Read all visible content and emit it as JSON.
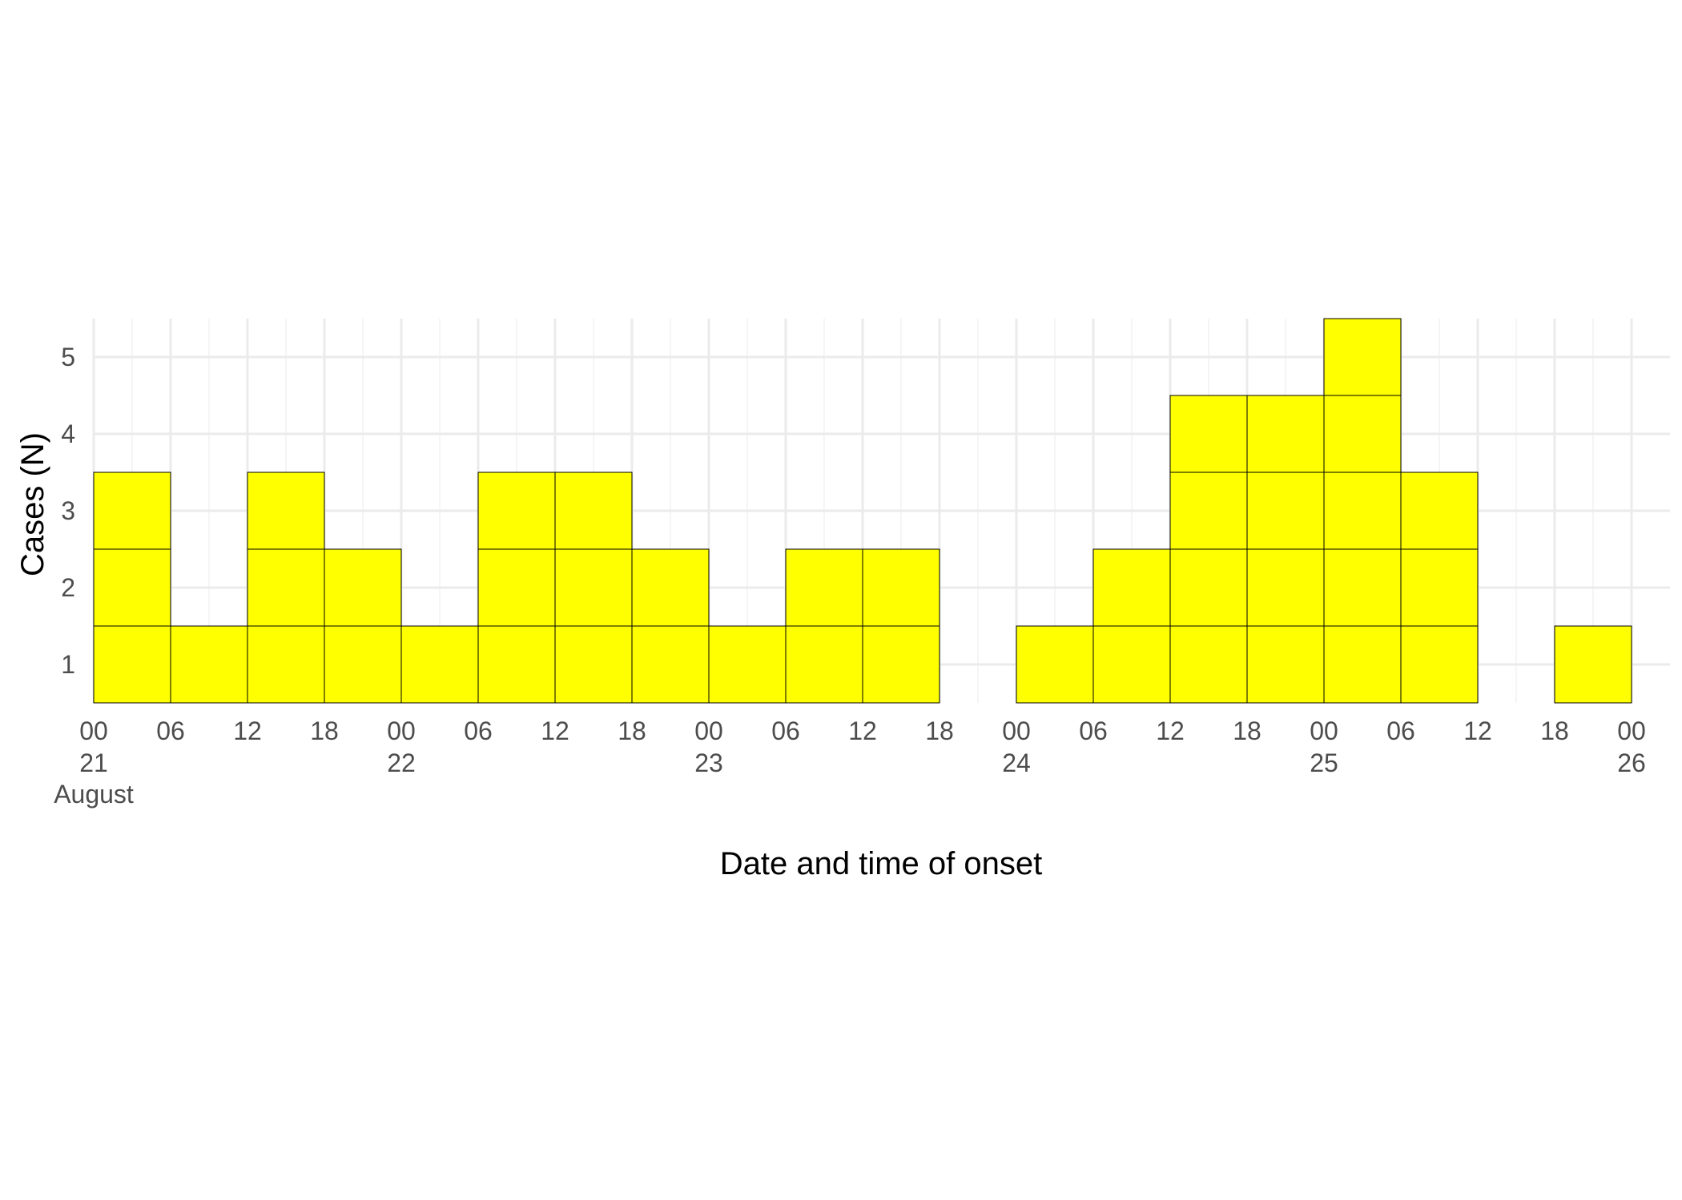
{
  "chart_data": {
    "type": "bar",
    "title": "",
    "xlabel": "Date and time of onset",
    "ylabel": "Cases (N)",
    "bin_hours": 6,
    "x_start": "2021-08-21T00:00",
    "x_end": "2021-08-26T06:00",
    "x": [
      "2021-08-21T00:00",
      "2021-08-21T06:00",
      "2021-08-21T12:00",
      "2021-08-21T18:00",
      "2021-08-22T00:00",
      "2021-08-22T06:00",
      "2021-08-22T12:00",
      "2021-08-22T18:00",
      "2021-08-23T00:00",
      "2021-08-23T06:00",
      "2021-08-23T12:00",
      "2021-08-23T18:00",
      "2021-08-24T00:00",
      "2021-08-24T06:00",
      "2021-08-24T12:00",
      "2021-08-24T18:00",
      "2021-08-25T00:00",
      "2021-08-25T06:00",
      "2021-08-25T12:00",
      "2021-08-25T18:00"
    ],
    "values": [
      3,
      1,
      3,
      2,
      1,
      3,
      3,
      2,
      1,
      2,
      2,
      0,
      1,
      2,
      4,
      4,
      5,
      3,
      0,
      1
    ],
    "ylim": [
      0.5,
      5.5
    ],
    "y_ticks": [
      1,
      2,
      3,
      4,
      5
    ],
    "x_ticks": [
      {
        "hour": "00",
        "day": "21",
        "month": "August"
      },
      {
        "hour": "06",
        "day": "",
        "month": ""
      },
      {
        "hour": "12",
        "day": "",
        "month": ""
      },
      {
        "hour": "18",
        "day": "",
        "month": ""
      },
      {
        "hour": "00",
        "day": "22",
        "month": ""
      },
      {
        "hour": "06",
        "day": "",
        "month": ""
      },
      {
        "hour": "12",
        "day": "",
        "month": ""
      },
      {
        "hour": "18",
        "day": "",
        "month": ""
      },
      {
        "hour": "00",
        "day": "23",
        "month": ""
      },
      {
        "hour": "06",
        "day": "",
        "month": ""
      },
      {
        "hour": "12",
        "day": "",
        "month": ""
      },
      {
        "hour": "18",
        "day": "",
        "month": ""
      },
      {
        "hour": "00",
        "day": "24",
        "month": ""
      },
      {
        "hour": "06",
        "day": "",
        "month": ""
      },
      {
        "hour": "12",
        "day": "",
        "month": ""
      },
      {
        "hour": "18",
        "day": "",
        "month": ""
      },
      {
        "hour": "00",
        "day": "25",
        "month": ""
      },
      {
        "hour": "06",
        "day": "",
        "month": ""
      },
      {
        "hour": "12",
        "day": "",
        "month": ""
      },
      {
        "hour": "18",
        "day": "",
        "month": ""
      },
      {
        "hour": "00",
        "day": "26",
        "month": ""
      }
    ],
    "grid": true,
    "legend": "none",
    "colors": {
      "bar_fill": "#ffff00",
      "bar_stroke": "#000000",
      "grid_major": "#ebebeb",
      "grid_minor": "#f2f2f2",
      "tick_text": "#4d4d4d",
      "title_text": "#000000"
    }
  }
}
